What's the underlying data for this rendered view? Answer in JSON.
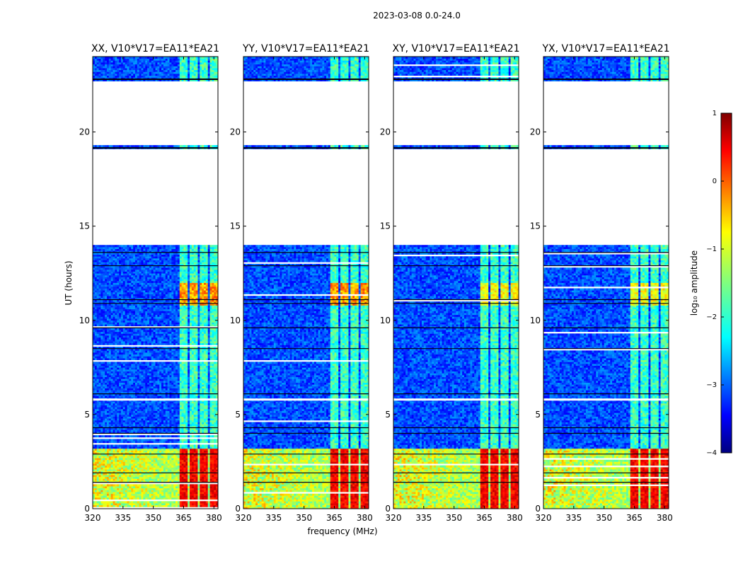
{
  "figure": {
    "suptitle": "2023-03-08 0.0-24.0",
    "ylabel": "UT (hours)",
    "xlabel": "frequency (MHz)"
  },
  "chart_data": {
    "type": "heatmap",
    "x_range": [
      320,
      382
    ],
    "y_range": [
      0,
      24
    ],
    "xticks": [
      "320",
      "335",
      "350",
      "365",
      "380"
    ],
    "xtick_values": [
      320,
      335,
      350,
      365,
      380
    ],
    "yticks": [
      "0",
      "5",
      "10",
      "15",
      "20"
    ],
    "ytick_values": [
      0,
      5,
      10,
      15,
      20
    ],
    "panels": [
      {
        "title": "XX, V10*V17=EA11*EA21"
      },
      {
        "title": "YY, V10*V17=EA11*EA21"
      },
      {
        "title": "XY, V10*V17=EA11*EA21"
      },
      {
        "title": "YX, V10*V17=EA11*EA21"
      }
    ],
    "data_gaps_hours": [
      [
        14.0,
        19.1
      ],
      [
        19.3,
        22.7
      ]
    ],
    "bright_channel_blocks_MHz": [
      [
        363.5,
        367.5
      ],
      [
        368.5,
        372.5
      ],
      [
        373.5,
        377.5
      ],
      [
        378.5,
        382.0
      ]
    ],
    "colorbar": {
      "label": "log₁₀ amplitude",
      "range": [
        -4,
        1
      ],
      "tick_values": [
        1,
        0,
        -1,
        -2,
        -3,
        -4
      ],
      "ticks": [
        "1",
        "0",
        "−1",
        "−2",
        "−3",
        "−4"
      ],
      "colormap": "jet"
    }
  }
}
